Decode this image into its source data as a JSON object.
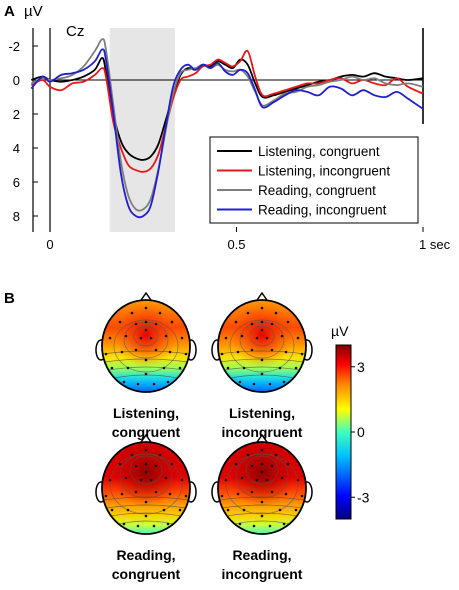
{
  "panel_a": {
    "letter": "A",
    "unit": "µV",
    "channel": "Cz",
    "x_end_label": "1 sec"
  },
  "panel_b": {
    "letter": "B",
    "colorbar": {
      "unit": "µV",
      "ticks": [
        3,
        0,
        -3
      ],
      "range": [
        -4,
        4
      ],
      "colors": [
        "#00007f",
        "#0000ff",
        "#00bfff",
        "#40ffbf",
        "#ffff00",
        "#ff8000",
        "#ff0000",
        "#7f0000"
      ]
    },
    "topomaps": [
      {
        "line1": "Listening,",
        "line2": "congruent",
        "center_value": 3.0
      },
      {
        "line1": "Listening,",
        "line2": "incongruent",
        "center_value": 3.2
      },
      {
        "line1": "Reading,",
        "line2": "congruent",
        "center_value": 4.0
      },
      {
        "line1": "Reading,",
        "line2": "incongruent",
        "center_value": 4.0
      }
    ]
  },
  "chart_data": {
    "type": "line",
    "title": "",
    "xlabel": "",
    "ylabel": "µV",
    "y_inverted": true,
    "xlim": [
      -0.05,
      1.0
    ],
    "ylim": [
      -3,
      9
    ],
    "xticks": [
      0,
      0.5,
      1
    ],
    "xtick_labels": [
      "0",
      "0.5",
      "1 sec"
    ],
    "yticks": [
      -2,
      0,
      2,
      4,
      6,
      8
    ],
    "ytick_labels": [
      "-2",
      "0",
      "2",
      "4",
      "6",
      "8"
    ],
    "shaded_window": [
      0.16,
      0.335
    ],
    "shade_color": "#e6e6e6",
    "legend_position": "bottom-right",
    "x": [
      -0.05,
      -0.02,
      0.0,
      0.03,
      0.06,
      0.09,
      0.12,
      0.14,
      0.15,
      0.17,
      0.19,
      0.21,
      0.23,
      0.25,
      0.27,
      0.29,
      0.31,
      0.33,
      0.35,
      0.37,
      0.39,
      0.41,
      0.43,
      0.45,
      0.47,
      0.49,
      0.51,
      0.53,
      0.55,
      0.57,
      0.6,
      0.63,
      0.66,
      0.69,
      0.72,
      0.75,
      0.78,
      0.81,
      0.84,
      0.87,
      0.9,
      0.93,
      0.96,
      1.0
    ],
    "series": [
      {
        "name": "Listening, congruent",
        "color": "#000000",
        "values": [
          0.0,
          -0.2,
          0.0,
          0.1,
          0.0,
          -0.2,
          -0.6,
          -1.3,
          -0.5,
          2.0,
          3.6,
          4.3,
          4.6,
          4.7,
          4.5,
          3.8,
          2.4,
          0.9,
          -0.3,
          -0.7,
          -0.6,
          -0.9,
          -0.8,
          -1.1,
          -0.9,
          -0.7,
          -1.2,
          -0.9,
          0.2,
          1.0,
          0.9,
          0.7,
          0.5,
          0.3,
          0.1,
          0.0,
          -0.2,
          -0.3,
          -0.2,
          -0.4,
          -0.2,
          -0.1,
          0.0,
          -0.1
        ]
      },
      {
        "name": "Listening, incongruent",
        "color": "#e31a1c",
        "values": [
          0.3,
          0.0,
          0.4,
          0.6,
          0.2,
          0.1,
          -0.3,
          -0.7,
          -0.2,
          2.5,
          4.0,
          5.0,
          5.3,
          5.4,
          5.2,
          4.4,
          2.8,
          1.1,
          0.0,
          -0.2,
          -0.4,
          -0.8,
          -0.9,
          -1.2,
          -1.0,
          -0.8,
          -1.1,
          -1.7,
          -0.2,
          0.9,
          0.8,
          0.6,
          0.4,
          0.2,
          0.2,
          0.0,
          -0.1,
          0.2,
          0.0,
          0.2,
          0.3,
          -0.1,
          0.4,
          0.8
        ]
      },
      {
        "name": "Reading, congruent",
        "color": "#7f7f7f",
        "values": [
          0.2,
          -0.1,
          0.0,
          -0.1,
          -0.3,
          -0.8,
          -1.7,
          -2.4,
          -1.8,
          1.5,
          4.8,
          6.8,
          7.6,
          7.6,
          7.0,
          5.3,
          3.0,
          0.8,
          -0.4,
          -0.6,
          -0.7,
          -0.9,
          -0.7,
          -0.9,
          -0.6,
          -0.5,
          -0.6,
          -0.2,
          0.7,
          1.5,
          1.2,
          0.8,
          0.7,
          0.4,
          0.3,
          0.1,
          0.0,
          -0.2,
          0.0,
          -0.1,
          0.2,
          0.3,
          0.2,
          0.4
        ]
      },
      {
        "name": "Reading, incongruent",
        "color": "#1f1fcc",
        "values": [
          0.5,
          -0.2,
          0.1,
          -0.3,
          -0.4,
          -0.6,
          -1.1,
          -1.8,
          -1.2,
          2.0,
          5.5,
          7.4,
          8.0,
          8.0,
          7.4,
          5.4,
          2.8,
          0.4,
          -0.6,
          -0.9,
          -0.6,
          -0.9,
          -0.7,
          -1.0,
          -0.5,
          -0.3,
          -0.6,
          -0.4,
          0.6,
          1.6,
          1.3,
          0.9,
          0.6,
          0.7,
          0.9,
          0.4,
          0.5,
          0.9,
          0.6,
          0.9,
          1.0,
          0.7,
          1.1,
          1.7
        ]
      }
    ]
  }
}
